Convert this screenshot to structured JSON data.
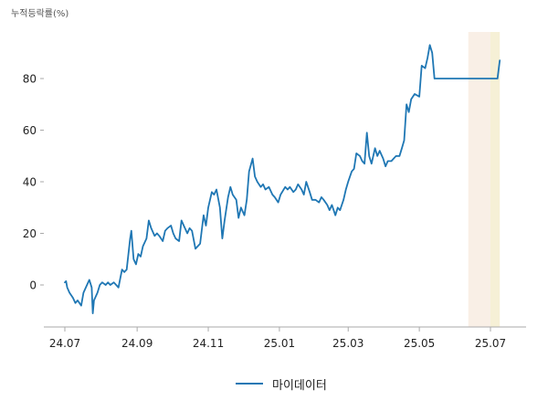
{
  "chart": {
    "unit_label": "누적등락률(%)"
  },
  "colors": {
    "line": "#1f77b4",
    "band_a": "#f9efe6",
    "band_b": "#f6f0d6",
    "axis": "#aaaaaa",
    "tick_text": "#222222"
  },
  "chart_data": {
    "type": "line",
    "title": "",
    "xlabel": "",
    "ylabel": "누적등락률(%)",
    "ylim": [
      -17,
      97
    ],
    "yticks": [
      0,
      20,
      40,
      60,
      80
    ],
    "xtick_labels": [
      "24.07",
      "24.09",
      "24.11",
      "25.01",
      "25.03",
      "25.05",
      "25.07"
    ],
    "xtick_dates": [
      "2024-07-01",
      "2024-09-01",
      "2024-11-01",
      "2025-01-01",
      "2025-03-01",
      "2025-05-01",
      "2025-07-01"
    ],
    "grid": false,
    "legend_position": "bottom-center",
    "highlight_bands": [
      {
        "start": "2025-06-12",
        "end": "2025-07-01"
      },
      {
        "start": "2025-07-01",
        "end": "2025-07-09"
      }
    ],
    "series": [
      {
        "name": "마이데이터",
        "points": [
          [
            "2024-07-01",
            1
          ],
          [
            "2024-07-02",
            1.5
          ],
          [
            "2024-07-03",
            -1
          ],
          [
            "2024-07-05",
            -3
          ],
          [
            "2024-07-08",
            -5
          ],
          [
            "2024-07-10",
            -7
          ],
          [
            "2024-07-12",
            -6
          ],
          [
            "2024-07-15",
            -8
          ],
          [
            "2024-07-17",
            -3
          ],
          [
            "2024-07-19",
            -1
          ],
          [
            "2024-07-22",
            2
          ],
          [
            "2024-07-24",
            -1
          ],
          [
            "2024-07-25",
            -11
          ],
          [
            "2024-07-26",
            -6
          ],
          [
            "2024-07-29",
            -3
          ],
          [
            "2024-07-31",
            0
          ],
          [
            "2024-08-02",
            1
          ],
          [
            "2024-08-05",
            0
          ],
          [
            "2024-08-07",
            1
          ],
          [
            "2024-08-09",
            0
          ],
          [
            "2024-08-12",
            1
          ],
          [
            "2024-08-14",
            0
          ],
          [
            "2024-08-16",
            -1
          ],
          [
            "2024-08-19",
            6
          ],
          [
            "2024-08-21",
            5
          ],
          [
            "2024-08-23",
            6
          ],
          [
            "2024-08-26",
            18
          ],
          [
            "2024-08-27",
            21
          ],
          [
            "2024-08-29",
            10
          ],
          [
            "2024-08-31",
            8
          ],
          [
            "2024-09-02",
            12
          ],
          [
            "2024-09-04",
            11
          ],
          [
            "2024-09-06",
            15
          ],
          [
            "2024-09-09",
            18
          ],
          [
            "2024-09-11",
            25
          ],
          [
            "2024-09-13",
            22
          ],
          [
            "2024-09-16",
            19
          ],
          [
            "2024-09-18",
            20
          ],
          [
            "2024-09-20",
            19
          ],
          [
            "2024-09-23",
            17
          ],
          [
            "2024-09-25",
            21
          ],
          [
            "2024-09-27",
            22
          ],
          [
            "2024-09-30",
            23
          ],
          [
            "2024-10-02",
            20
          ],
          [
            "2024-10-04",
            18
          ],
          [
            "2024-10-07",
            17
          ],
          [
            "2024-10-09",
            25
          ],
          [
            "2024-10-11",
            23
          ],
          [
            "2024-10-14",
            20
          ],
          [
            "2024-10-16",
            22
          ],
          [
            "2024-10-18",
            21
          ],
          [
            "2024-10-21",
            14
          ],
          [
            "2024-10-23",
            15
          ],
          [
            "2024-10-25",
            16
          ],
          [
            "2024-10-28",
            27
          ],
          [
            "2024-10-30",
            23
          ],
          [
            "2024-11-01",
            30
          ],
          [
            "2024-11-04",
            36
          ],
          [
            "2024-11-06",
            35
          ],
          [
            "2024-11-08",
            37
          ],
          [
            "2024-11-11",
            30
          ],
          [
            "2024-11-13",
            18
          ],
          [
            "2024-11-15",
            25
          ],
          [
            "2024-11-18",
            34
          ],
          [
            "2024-11-20",
            38
          ],
          [
            "2024-11-22",
            35
          ],
          [
            "2024-11-25",
            33
          ],
          [
            "2024-11-27",
            26
          ],
          [
            "2024-11-29",
            30
          ],
          [
            "2024-12-02",
            27
          ],
          [
            "2024-12-04",
            33
          ],
          [
            "2024-12-06",
            44
          ],
          [
            "2024-12-09",
            49
          ],
          [
            "2024-12-11",
            42
          ],
          [
            "2024-12-13",
            40
          ],
          [
            "2024-12-16",
            38
          ],
          [
            "2024-12-18",
            39
          ],
          [
            "2024-12-20",
            37
          ],
          [
            "2024-12-23",
            38
          ],
          [
            "2024-12-26",
            35
          ],
          [
            "2024-12-28",
            34
          ],
          [
            "2024-12-31",
            32
          ],
          [
            "2025-01-02",
            35
          ],
          [
            "2025-01-06",
            38
          ],
          [
            "2025-01-08",
            37
          ],
          [
            "2025-01-10",
            38
          ],
          [
            "2025-01-13",
            36
          ],
          [
            "2025-01-15",
            37
          ],
          [
            "2025-01-17",
            39
          ],
          [
            "2025-01-20",
            37
          ],
          [
            "2025-01-22",
            35
          ],
          [
            "2025-01-24",
            40
          ],
          [
            "2025-01-27",
            36
          ],
          [
            "2025-01-29",
            33
          ],
          [
            "2025-02-01",
            33
          ],
          [
            "2025-02-04",
            32
          ],
          [
            "2025-02-06",
            34
          ],
          [
            "2025-02-08",
            33
          ],
          [
            "2025-02-11",
            31
          ],
          [
            "2025-02-13",
            29
          ],
          [
            "2025-02-15",
            31
          ],
          [
            "2025-02-18",
            27
          ],
          [
            "2025-02-20",
            30
          ],
          [
            "2025-02-22",
            29
          ],
          [
            "2025-02-25",
            33
          ],
          [
            "2025-02-27",
            37
          ],
          [
            "2025-03-01",
            40
          ],
          [
            "2025-03-04",
            44
          ],
          [
            "2025-03-06",
            45
          ],
          [
            "2025-03-08",
            51
          ],
          [
            "2025-03-11",
            50
          ],
          [
            "2025-03-13",
            48
          ],
          [
            "2025-03-15",
            47
          ],
          [
            "2025-03-17",
            59
          ],
          [
            "2025-03-19",
            50
          ],
          [
            "2025-03-21",
            47
          ],
          [
            "2025-03-24",
            53
          ],
          [
            "2025-03-26",
            50
          ],
          [
            "2025-03-28",
            52
          ],
          [
            "2025-03-31",
            49
          ],
          [
            "2025-04-02",
            46
          ],
          [
            "2025-04-04",
            48
          ],
          [
            "2025-04-07",
            48
          ],
          [
            "2025-04-09",
            49
          ],
          [
            "2025-04-11",
            50
          ],
          [
            "2025-04-14",
            50
          ],
          [
            "2025-04-16",
            53
          ],
          [
            "2025-04-18",
            56
          ],
          [
            "2025-04-20",
            70
          ],
          [
            "2025-04-22",
            67
          ],
          [
            "2025-04-24",
            72
          ],
          [
            "2025-04-27",
            74
          ],
          [
            "2025-05-01",
            73
          ],
          [
            "2025-05-03",
            85
          ],
          [
            "2025-05-06",
            84
          ],
          [
            "2025-05-08",
            88
          ],
          [
            "2025-05-10",
            93
          ],
          [
            "2025-05-12",
            90
          ],
          [
            "2025-05-14",
            80
          ],
          [
            "2025-05-17",
            80
          ],
          [
            "2025-05-20",
            80
          ],
          [
            "2025-05-23",
            80
          ],
          [
            "2025-05-26",
            80
          ],
          [
            "2025-05-29",
            80
          ],
          [
            "2025-06-01",
            80
          ],
          [
            "2025-06-04",
            80
          ],
          [
            "2025-06-07",
            80
          ],
          [
            "2025-06-10",
            80
          ],
          [
            "2025-07-07",
            80
          ],
          [
            "2025-07-09",
            87
          ]
        ]
      }
    ]
  }
}
